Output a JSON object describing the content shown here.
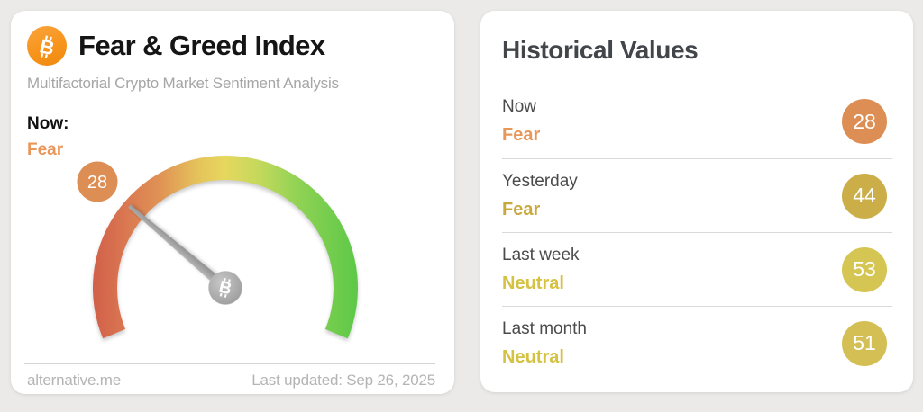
{
  "chart_data": {
    "type": "gauge",
    "title": "Fear & Greed Index",
    "value": 28,
    "range": [
      0,
      100
    ],
    "classification": "Fear",
    "gauge_sweep_deg": 225,
    "historical": [
      {
        "label": "Now",
        "value": 28,
        "classification": "Fear"
      },
      {
        "label": "Yesterday",
        "value": 44,
        "classification": "Fear"
      },
      {
        "label": "Last week",
        "value": 53,
        "classification": "Neutral"
      },
      {
        "label": "Last month",
        "value": 51,
        "classification": "Neutral"
      }
    ]
  },
  "gauge_card": {
    "title": "Fear & Greed Index",
    "subtitle": "Multifactorial Crypto Market Sentiment Analysis",
    "now_label": "Now:",
    "now_classification": "Fear",
    "value": 28,
    "footer_left": "alternative.me",
    "footer_right": "Last updated: Sep 26, 2025"
  },
  "history_card": {
    "title": "Historical Values",
    "rows": [
      {
        "label": "Now",
        "classification": "Fear",
        "value": 28,
        "classification_color": "#e8975b",
        "badge_color": "#dd8e55"
      },
      {
        "label": "Yesterday",
        "classification": "Fear",
        "value": 44,
        "classification_color": "#c9a93e",
        "badge_color": "#ccae49"
      },
      {
        "label": "Last week",
        "classification": "Neutral",
        "value": 53,
        "classification_color": "#d5c243",
        "badge_color": "#d5c553"
      },
      {
        "label": "Last month",
        "classification": "Neutral",
        "value": 51,
        "classification_color": "#d5c243",
        "badge_color": "#d4bf55"
      }
    ]
  },
  "icons": {
    "bitcoin_letter": "B"
  },
  "colors": {
    "page_bg": "#ebeae8",
    "bitcoin_orange": "#f7941c",
    "now_classification": "#e8965a",
    "gauge_badge_bg": "#dd8e55",
    "arc_gradient": [
      "#d15f49",
      "#d97551",
      "#e09455",
      "#e5c45b",
      "#e6d75e",
      "#c3d95c",
      "#8ed254",
      "#5dc847"
    ],
    "needle_gray": "#a2a2a2",
    "hub_gray": "#a8a8a8"
  }
}
